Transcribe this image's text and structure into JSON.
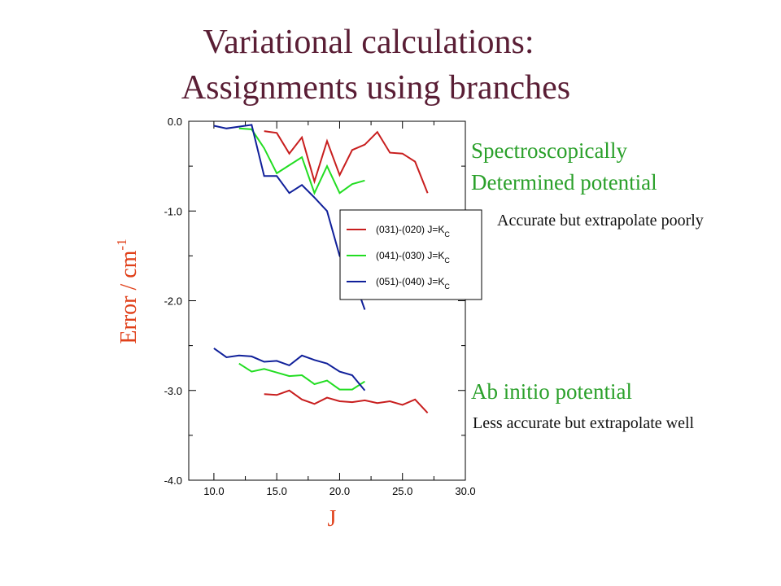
{
  "slide": {
    "title_line_1": "Variational calculations:",
    "title_line_2": "Assignments using branches",
    "spectro_line_1": "Spectroscopically",
    "spectro_line_2": "Determined potential",
    "spectro_note": "Accurate but extrapolate poorly",
    "abinitio_title": "Ab initio potential",
    "abinitio_note": "Less accurate but extrapolate well"
  },
  "chart_data": {
    "type": "line",
    "xlabel": "J",
    "ylabel": "Error / cm",
    "ylabel_sup": "-1",
    "xlim": [
      8.0,
      30.0
    ],
    "ylim": [
      -4.0,
      0.0
    ],
    "x_ticks": [
      "10.0",
      "15.0",
      "20.0",
      "25.0",
      "30.0"
    ],
    "y_ticks": [
      "0.0",
      "-1.0",
      "-2.0",
      "-3.0",
      "-4.0"
    ],
    "grid": false,
    "legend_position": "center-right",
    "legend": [
      {
        "label": "(031)-(020) J=K",
        "sub": "C",
        "color": "#c81e1e"
      },
      {
        "label": "(041)-(030) J=K",
        "sub": "C",
        "color": "#22dd22"
      },
      {
        "label": "(051)-(040) J=K",
        "sub": "C",
        "color": "#10209a"
      }
    ],
    "series": [
      {
        "group": "spectroscopic",
        "color": "#c81e1e",
        "points": [
          [
            14,
            -0.11
          ],
          [
            15,
            -0.13
          ],
          [
            16,
            -0.36
          ],
          [
            17,
            -0.18
          ],
          [
            18,
            -0.67
          ],
          [
            19,
            -0.22
          ],
          [
            20,
            -0.6
          ],
          [
            21,
            -0.32
          ],
          [
            22,
            -0.26
          ],
          [
            23,
            -0.12
          ],
          [
            24,
            -0.35
          ],
          [
            25,
            -0.36
          ],
          [
            26,
            -0.45
          ],
          [
            27,
            -0.8
          ]
        ]
      },
      {
        "group": "spectroscopic",
        "color": "#22dd22",
        "points": [
          [
            12,
            -0.08
          ],
          [
            13,
            -0.09
          ],
          [
            14,
            -0.3
          ],
          [
            15,
            -0.58
          ],
          [
            16,
            -0.49
          ],
          [
            17,
            -0.4
          ],
          [
            18,
            -0.8
          ],
          [
            19,
            -0.5
          ],
          [
            20,
            -0.8
          ],
          [
            21,
            -0.7
          ],
          [
            22,
            -0.66
          ]
        ]
      },
      {
        "group": "spectroscopic",
        "color": "#10209a",
        "points": [
          [
            10,
            -0.05
          ],
          [
            11,
            -0.08
          ],
          [
            12,
            -0.06
          ],
          [
            13,
            -0.04
          ],
          [
            14,
            -0.61
          ],
          [
            15,
            -0.61
          ],
          [
            16,
            -0.8
          ],
          [
            17,
            -0.71
          ],
          [
            18,
            -0.85
          ],
          [
            19,
            -1.0
          ],
          [
            20,
            -1.5
          ],
          [
            21,
            -1.7
          ],
          [
            22,
            -2.1
          ]
        ]
      },
      {
        "group": "ab_initio",
        "color": "#c81e1e",
        "points": [
          [
            14,
            -3.04
          ],
          [
            15,
            -3.05
          ],
          [
            16,
            -3.0
          ],
          [
            17,
            -3.1
          ],
          [
            18,
            -3.15
          ],
          [
            19,
            -3.08
          ],
          [
            20,
            -3.12
          ],
          [
            21,
            -3.13
          ],
          [
            22,
            -3.11
          ],
          [
            23,
            -3.14
          ],
          [
            24,
            -3.12
          ],
          [
            25,
            -3.16
          ],
          [
            26,
            -3.1
          ],
          [
            27,
            -3.25
          ]
        ]
      },
      {
        "group": "ab_initio",
        "color": "#22dd22",
        "points": [
          [
            12,
            -2.7
          ],
          [
            13,
            -2.79
          ],
          [
            14,
            -2.76
          ],
          [
            15,
            -2.8
          ],
          [
            16,
            -2.84
          ],
          [
            17,
            -2.83
          ],
          [
            18,
            -2.93
          ],
          [
            19,
            -2.89
          ],
          [
            20,
            -2.99
          ],
          [
            21,
            -2.99
          ],
          [
            22,
            -2.9
          ]
        ]
      },
      {
        "group": "ab_initio",
        "color": "#10209a",
        "points": [
          [
            10,
            -2.53
          ],
          [
            11,
            -2.63
          ],
          [
            12,
            -2.61
          ],
          [
            13,
            -2.62
          ],
          [
            14,
            -2.68
          ],
          [
            15,
            -2.67
          ],
          [
            16,
            -2.72
          ],
          [
            17,
            -2.61
          ],
          [
            18,
            -2.66
          ],
          [
            19,
            -2.7
          ],
          [
            20,
            -2.79
          ],
          [
            21,
            -2.83
          ],
          [
            22,
            -3.0
          ]
        ]
      }
    ]
  }
}
